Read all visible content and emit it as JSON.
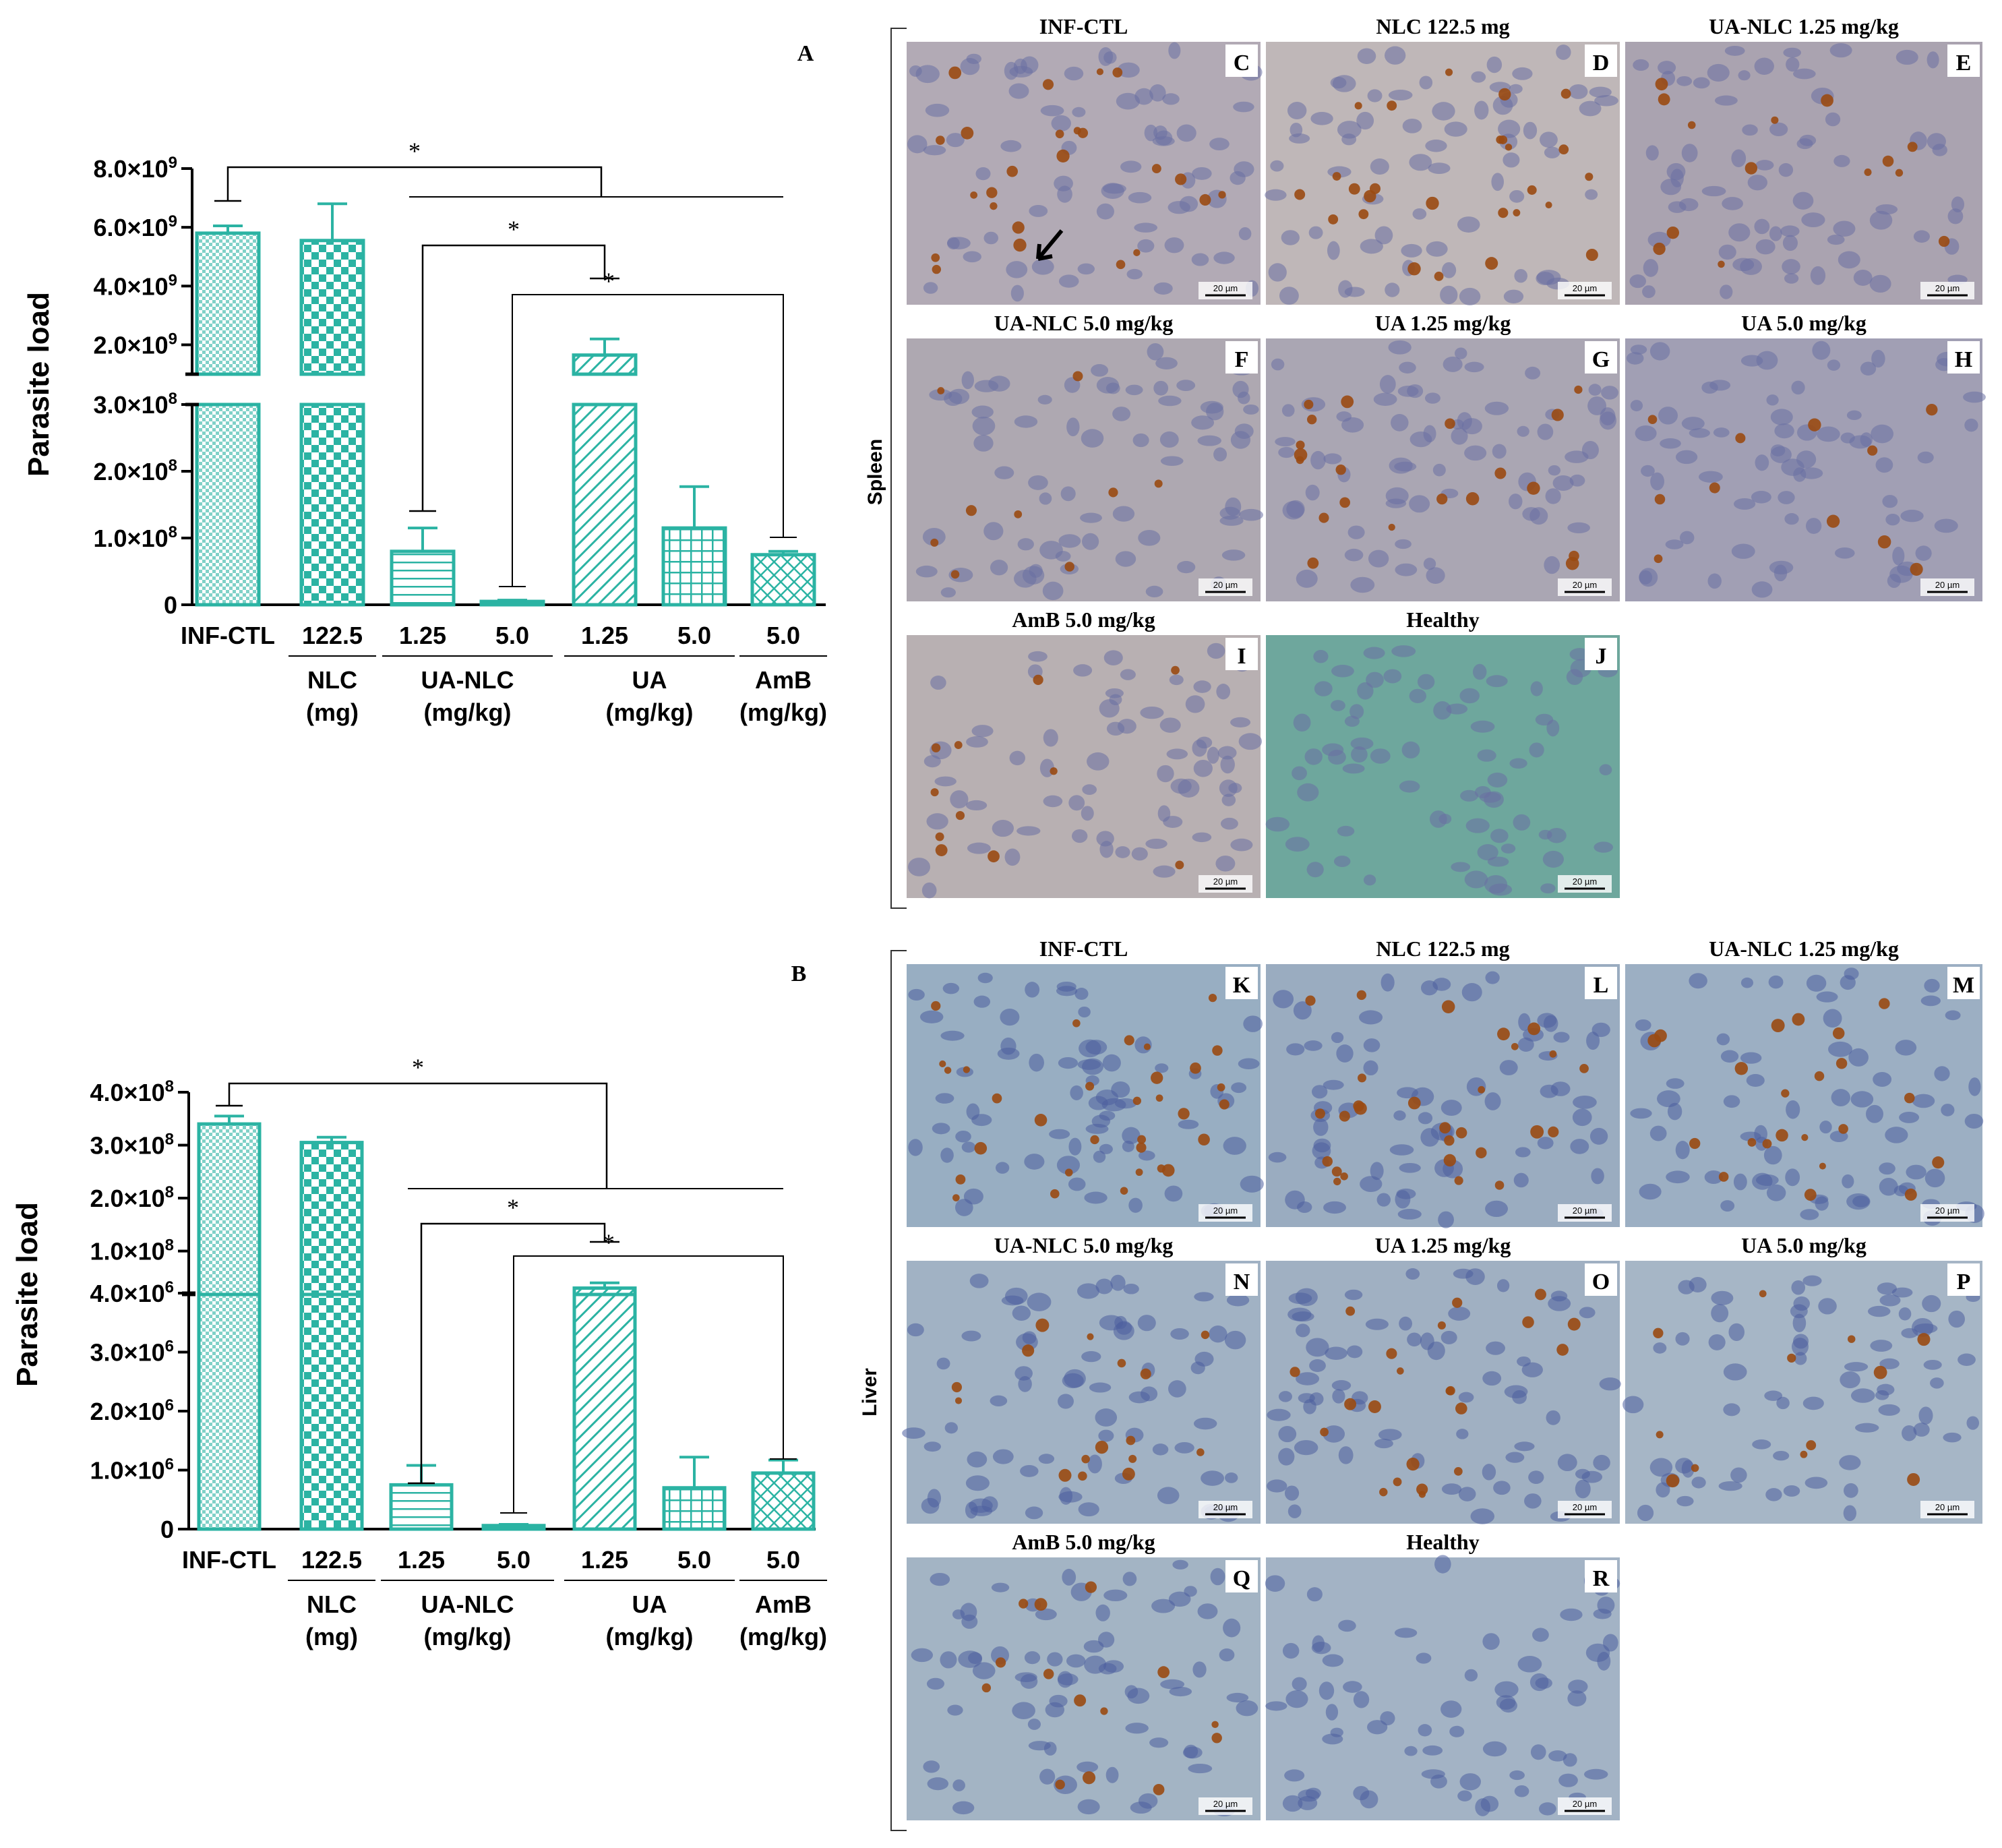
{
  "chart_data": [
    {
      "type": "bar",
      "panel_letter": "A",
      "ylabel": "Parasite load",
      "axis_break": true,
      "y_segments": [
        {
          "ylim": [
            0,
            300000000
          ],
          "ticks": [
            "0",
            "1.0×10^8",
            "2.0×10^8",
            "3.0×10^8"
          ],
          "tick_values": [
            0,
            100000000,
            200000000,
            300000000
          ]
        },
        {
          "ylim": [
            0,
            8000000000
          ],
          "ticks": [
            "2.0×10^9",
            "4.0×10^9",
            "6.0×10^9",
            "8.0×10^9"
          ],
          "tick_values": [
            2000000000,
            4000000000,
            6000000000,
            8000000000
          ]
        }
      ],
      "categories": [
        "INF-CTL",
        "122.5",
        "1.25",
        "5.0",
        "1.25",
        "5.0",
        "5.0"
      ],
      "groups": [
        {
          "label": "NLC",
          "unit": "(mg)",
          "span": [
            1,
            1
          ]
        },
        {
          "label": "UA-NLC",
          "unit": "(mg/kg)",
          "span": [
            2,
            3
          ]
        },
        {
          "label": "UA",
          "unit": "(mg/kg)",
          "span": [
            4,
            5
          ]
        },
        {
          "label": "AmB",
          "unit": "(mg/kg)",
          "span": [
            6,
            6
          ]
        }
      ],
      "values": [
        5800000000,
        5550000000,
        80000000,
        5000000,
        1650000000,
        115000000,
        75000000
      ],
      "errors": [
        250000000,
        1250000000,
        35000000,
        2000000,
        550000000,
        62000000,
        5000000
      ],
      "significance": [
        "*",
        "*",
        "*"
      ],
      "color": "#2bb3a3"
    },
    {
      "type": "bar",
      "panel_letter": "B",
      "ylabel": "Parasite load",
      "axis_break": true,
      "y_segments": [
        {
          "ylim": [
            0,
            4000000
          ],
          "ticks": [
            "0",
            "1.0×10^6",
            "2.0×10^6",
            "3.0×10^6",
            "4.0×10^6"
          ],
          "tick_values": [
            0,
            1000000,
            2000000,
            3000000,
            4000000
          ]
        },
        {
          "ylim": [
            0,
            400000000
          ],
          "ticks": [
            "1.0×10^8",
            "2.0×10^8",
            "3.0×10^8",
            "4.0×10^8"
          ],
          "tick_values": [
            100000000,
            200000000,
            300000000,
            400000000
          ]
        }
      ],
      "categories": [
        "INF-CTL",
        "122.5",
        "1.25",
        "5.0",
        "1.25",
        "5.0",
        "5.0"
      ],
      "groups": [
        {
          "label": "NLC",
          "unit": "(mg)",
          "span": [
            1,
            1
          ]
        },
        {
          "label": "UA-NLC",
          "unit": "(mg/kg)",
          "span": [
            2,
            3
          ]
        },
        {
          "label": "UA",
          "unit": "(mg/kg)",
          "span": [
            4,
            5
          ]
        },
        {
          "label": "AmB",
          "unit": "(mg/kg)",
          "span": [
            6,
            6
          ]
        }
      ],
      "values": [
        340000000,
        305000000,
        750000,
        60000,
        30000000,
        700000,
        950000
      ],
      "errors": [
        15000000,
        10000000,
        330000,
        20000,
        10000000,
        520000,
        220000
      ],
      "significance": [
        "*",
        "*",
        "*"
      ],
      "color": "#2bb3a3"
    }
  ],
  "micrographs": {
    "spleen": {
      "side_label": "Spleen",
      "scale_bar": "20 µm",
      "panels": [
        {
          "letter": "C",
          "title": "INF-CTL",
          "bg": "#b2aab5",
          "dots": 24,
          "arrow": true
        },
        {
          "letter": "D",
          "title": "NLC 122.5 mg",
          "bg": "#bfb7b8",
          "dots": 26
        },
        {
          "letter": "E",
          "title": "UA-NLC 1.25 mg/kg",
          "bg": "#aaa3b0",
          "dots": 14
        },
        {
          "letter": "F",
          "title": "UA-NLC 5.0 mg/kg",
          "bg": "#aea8b1",
          "dots": 9
        },
        {
          "letter": "G",
          "title": "UA 1.25 mg/kg",
          "bg": "#aaa6b3",
          "dots": 20
        },
        {
          "letter": "H",
          "title": "UA 5.0 mg/kg",
          "bg": "#a19fb4",
          "dots": 11
        },
        {
          "letter": "I",
          "title": "AmB 5.0 mg/kg",
          "bg": "#b8b0b2",
          "dots": 11
        },
        {
          "letter": "J",
          "title": "Healthy",
          "bg": "#6ea79d",
          "dots": 0
        }
      ]
    },
    "liver": {
      "side_label": "Liver",
      "scale_bar": "20 µm",
      "panels": [
        {
          "letter": "K",
          "title": "INF-CTL",
          "bg": "#98aec2",
          "dots": 32
        },
        {
          "letter": "L",
          "title": "NLC 122.5 mg",
          "bg": "#9aacc0",
          "dots": 28
        },
        {
          "letter": "M",
          "title": "UA-NLC 1.25 mg/kg",
          "bg": "#9cafc3",
          "dots": 22
        },
        {
          "letter": "N",
          "title": "UA-NLC 5.0 mg/kg",
          "bg": "#a1b2c4",
          "dots": 16
        },
        {
          "letter": "O",
          "title": "UA 1.25 mg/kg",
          "bg": "#a0b0c2",
          "dots": 22
        },
        {
          "letter": "P",
          "title": "UA 5.0 mg/kg",
          "bg": "#a6b6c6",
          "dots": 12
        },
        {
          "letter": "Q",
          "title": "AmB 5.0 mg/kg",
          "bg": "#a3b4c4",
          "dots": 14
        },
        {
          "letter": "R",
          "title": "Healthy",
          "bg": "#a3b3c5",
          "dots": 0
        }
      ]
    }
  }
}
